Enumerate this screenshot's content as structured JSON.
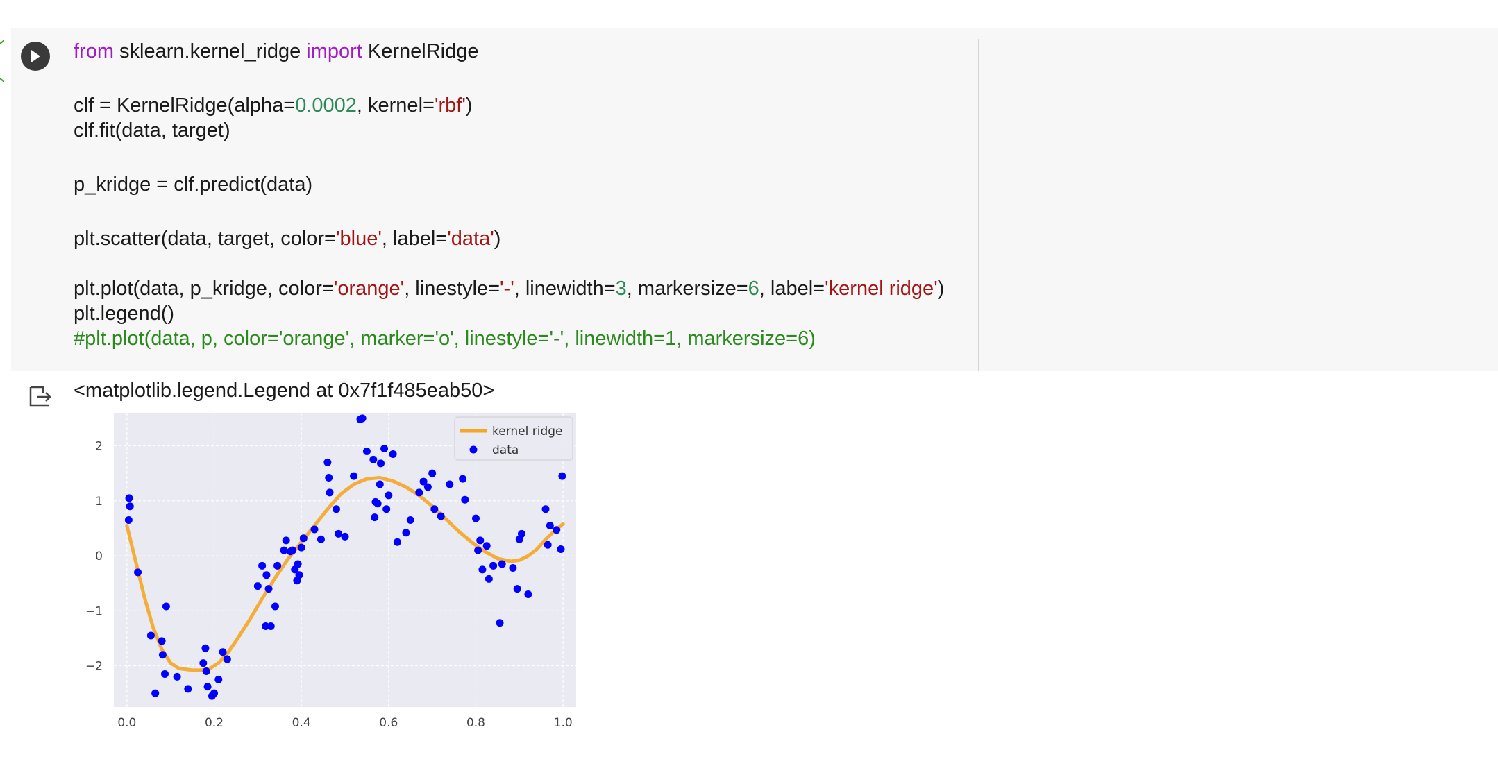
{
  "code_lines": [
    [
      {
        "t": "from",
        "c": "kw"
      },
      {
        "t": " sklearn.kernel_ridge "
      },
      {
        "t": "import",
        "c": "kw"
      },
      {
        "t": " KernelRidge"
      }
    ],
    [],
    [
      {
        "t": "clf = KernelRidge(alpha="
      },
      {
        "t": "0.0002",
        "c": "num"
      },
      {
        "t": ", kernel="
      },
      {
        "t": "'rbf'",
        "c": "str"
      },
      {
        "t": ")"
      }
    ],
    [
      {
        "t": "clf.fit(data, target)"
      }
    ],
    [],
    [
      {
        "t": "p_kridge = clf.predict(data)"
      }
    ],
    [],
    [
      {
        "t": "plt.scatter(data, target, color="
      },
      {
        "t": "'blue'",
        "c": "str"
      },
      {
        "t": ", label="
      },
      {
        "t": "'data'",
        "c": "str"
      },
      {
        "t": ")"
      }
    ],
    [],
    [
      {
        "t": "plt.plot(data, p_kridge, color="
      },
      {
        "t": "'orange'",
        "c": "str"
      },
      {
        "t": ", linestyle="
      },
      {
        "t": "'-'",
        "c": "str"
      },
      {
        "t": ", linewidth="
      },
      {
        "t": "3",
        "c": "num"
      },
      {
        "t": ", markersize="
      },
      {
        "t": "6",
        "c": "num"
      },
      {
        "t": ", label="
      },
      {
        "t": "'kernel ridge'",
        "c": "str"
      },
      {
        "t": ")"
      }
    ],
    [
      {
        "t": "plt.legend()"
      }
    ],
    [
      {
        "t": "#plt.plot(data, p, color='orange', marker='o', linestyle='-', linewidth=1, markersize=6)",
        "c": "cmt"
      }
    ]
  ],
  "output": {
    "text": "<matplotlib.legend.Legend at 0x7f1f485eab50>"
  },
  "icons": {
    "run": "play-icon",
    "output": "output-redirect-icon"
  },
  "colors": {
    "scatter": "#0000ff",
    "line": "#f5a623",
    "plot_bg": "#eaeaf2",
    "cell_bg": "#f7f7f7",
    "keyword": "#a11cc4",
    "string": "#a31515",
    "number": "#2e8b57",
    "comment": "#2b8a1e"
  },
  "chart_data": {
    "type": "scatter",
    "xlim": [
      -0.03,
      1.03
    ],
    "ylim": [
      -2.75,
      2.6
    ],
    "xticks": [
      0.0,
      0.2,
      0.4,
      0.6,
      0.8,
      1.0
    ],
    "xtick_labels": [
      "0.0",
      "0.2",
      "0.4",
      "0.6",
      "0.8",
      "1.0"
    ],
    "yticks": [
      -2,
      -1,
      0,
      1,
      2
    ],
    "ytick_labels": [
      "−2",
      "−1",
      "0",
      "1",
      "2"
    ],
    "grid": true,
    "legend": {
      "position": "top-right",
      "entries": [
        "kernel ridge",
        "data"
      ]
    },
    "series": [
      {
        "name": "data",
        "type": "scatter",
        "points": [
          [
            0.005,
            1.05
          ],
          [
            0.007,
            0.9
          ],
          [
            0.004,
            0.65
          ],
          [
            0.025,
            -0.3
          ],
          [
            0.055,
            -1.45
          ],
          [
            0.065,
            -2.5
          ],
          [
            0.08,
            -1.55
          ],
          [
            0.082,
            -1.8
          ],
          [
            0.087,
            -2.15
          ],
          [
            0.09,
            -0.92
          ],
          [
            0.115,
            -2.2
          ],
          [
            0.14,
            -2.42
          ],
          [
            0.175,
            -1.95
          ],
          [
            0.18,
            -1.68
          ],
          [
            0.182,
            -2.1
          ],
          [
            0.185,
            -2.38
          ],
          [
            0.195,
            -2.55
          ],
          [
            0.2,
            -2.5
          ],
          [
            0.21,
            -2.25
          ],
          [
            0.22,
            -1.75
          ],
          [
            0.23,
            -1.88
          ],
          [
            0.3,
            -0.55
          ],
          [
            0.31,
            -0.18
          ],
          [
            0.318,
            -1.28
          ],
          [
            0.325,
            -0.6
          ],
          [
            0.33,
            -1.28
          ],
          [
            0.34,
            -0.92
          ],
          [
            0.32,
            -0.35
          ],
          [
            0.345,
            -0.18
          ],
          [
            0.36,
            0.1
          ],
          [
            0.365,
            0.28
          ],
          [
            0.375,
            0.08
          ],
          [
            0.38,
            0.1
          ],
          [
            0.385,
            -0.25
          ],
          [
            0.39,
            -0.45
          ],
          [
            0.392,
            -0.15
          ],
          [
            0.395,
            -0.35
          ],
          [
            0.4,
            0.15
          ],
          [
            0.405,
            0.32
          ],
          [
            0.43,
            0.48
          ],
          [
            0.445,
            0.3
          ],
          [
            0.46,
            1.7
          ],
          [
            0.463,
            1.42
          ],
          [
            0.465,
            1.15
          ],
          [
            0.48,
            0.85
          ],
          [
            0.485,
            0.4
          ],
          [
            0.5,
            0.35
          ],
          [
            0.52,
            1.45
          ],
          [
            0.535,
            2.48
          ],
          [
            0.54,
            2.5
          ],
          [
            0.55,
            1.9
          ],
          [
            0.565,
            1.75
          ],
          [
            0.568,
            0.7
          ],
          [
            0.57,
            0.98
          ],
          [
            0.575,
            0.95
          ],
          [
            0.58,
            1.3
          ],
          [
            0.582,
            1.68
          ],
          [
            0.59,
            1.95
          ],
          [
            0.595,
            0.85
          ],
          [
            0.6,
            1.1
          ],
          [
            0.61,
            1.85
          ],
          [
            0.62,
            0.25
          ],
          [
            0.64,
            0.42
          ],
          [
            0.65,
            0.65
          ],
          [
            0.67,
            1.15
          ],
          [
            0.68,
            1.35
          ],
          [
            0.69,
            1.25
          ],
          [
            0.7,
            1.5
          ],
          [
            0.705,
            0.85
          ],
          [
            0.72,
            0.72
          ],
          [
            0.74,
            1.3
          ],
          [
            0.77,
            1.4
          ],
          [
            0.775,
            1.02
          ],
          [
            0.8,
            0.68
          ],
          [
            0.805,
            0.1
          ],
          [
            0.81,
            0.28
          ],
          [
            0.815,
            -0.25
          ],
          [
            0.825,
            0.18
          ],
          [
            0.83,
            -0.42
          ],
          [
            0.84,
            -0.18
          ],
          [
            0.855,
            -1.22
          ],
          [
            0.86,
            -0.15
          ],
          [
            0.885,
            -0.22
          ],
          [
            0.9,
            0.3
          ],
          [
            0.905,
            0.4
          ],
          [
            0.895,
            -0.6
          ],
          [
            0.92,
            -0.7
          ],
          [
            0.96,
            0.85
          ],
          [
            0.965,
            0.2
          ],
          [
            0.97,
            0.55
          ],
          [
            0.985,
            0.47
          ],
          [
            0.995,
            0.12
          ],
          [
            0.998,
            1.45
          ]
        ]
      },
      {
        "name": "kernel ridge",
        "type": "line",
        "points": [
          [
            0.0,
            0.55
          ],
          [
            0.02,
            -0.1
          ],
          [
            0.04,
            -0.75
          ],
          [
            0.06,
            -1.3
          ],
          [
            0.08,
            -1.7
          ],
          [
            0.1,
            -1.95
          ],
          [
            0.12,
            -2.05
          ],
          [
            0.15,
            -2.08
          ],
          [
            0.17,
            -2.08
          ],
          [
            0.19,
            -2.05
          ],
          [
            0.21,
            -1.95
          ],
          [
            0.23,
            -1.78
          ],
          [
            0.25,
            -1.55
          ],
          [
            0.28,
            -1.18
          ],
          [
            0.31,
            -0.78
          ],
          [
            0.34,
            -0.4
          ],
          [
            0.37,
            -0.05
          ],
          [
            0.4,
            0.25
          ],
          [
            0.43,
            0.55
          ],
          [
            0.46,
            0.85
          ],
          [
            0.49,
            1.12
          ],
          [
            0.52,
            1.3
          ],
          [
            0.55,
            1.4
          ],
          [
            0.58,
            1.42
          ],
          [
            0.61,
            1.36
          ],
          [
            0.64,
            1.25
          ],
          [
            0.67,
            1.1
          ],
          [
            0.7,
            0.9
          ],
          [
            0.73,
            0.68
          ],
          [
            0.76,
            0.45
          ],
          [
            0.79,
            0.25
          ],
          [
            0.82,
            0.08
          ],
          [
            0.85,
            -0.05
          ],
          [
            0.88,
            -0.1
          ],
          [
            0.9,
            -0.08
          ],
          [
            0.92,
            0.0
          ],
          [
            0.94,
            0.12
          ],
          [
            0.96,
            0.3
          ],
          [
            0.98,
            0.45
          ],
          [
            1.0,
            0.58
          ]
        ]
      }
    ]
  }
}
